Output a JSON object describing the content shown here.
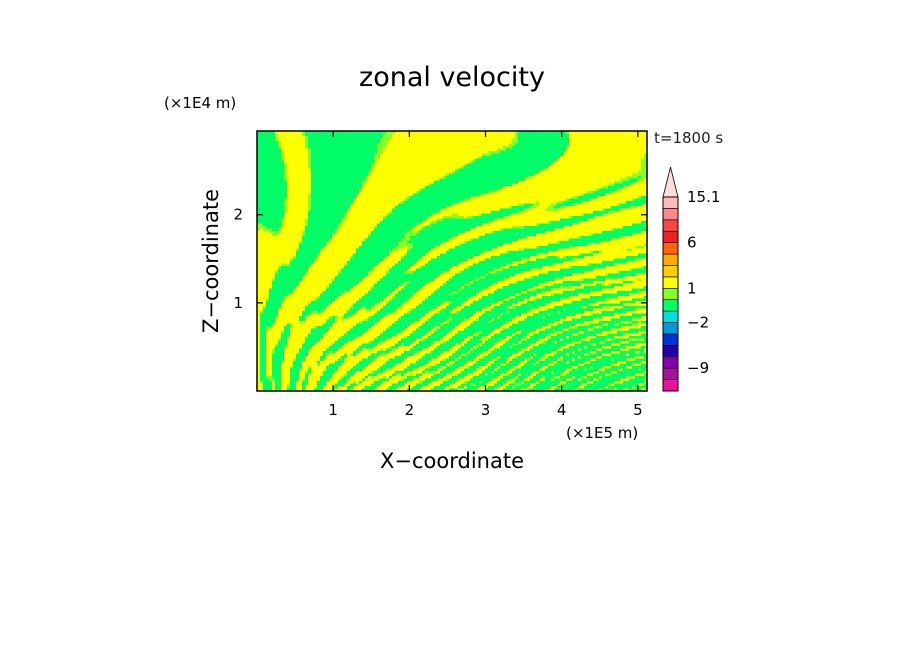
{
  "chart_data": {
    "type": "heatmap",
    "title": "zonal velocity",
    "xlabel": "X−coordinate",
    "ylabel": "Z−coordinate",
    "x_unit": "(×1E5 m)",
    "y_unit": "(×1E4 m)",
    "time_label": "t=1800 s",
    "xlim": [
      0,
      5.12
    ],
    "ylim": [
      0,
      2.95
    ],
    "x_ticks": [
      {
        "value": 1,
        "label": "1"
      },
      {
        "value": 2,
        "label": "2"
      },
      {
        "value": 3,
        "label": "3"
      },
      {
        "value": 4,
        "label": "4"
      },
      {
        "value": 5,
        "label": "5"
      }
    ],
    "y_ticks": [
      {
        "value": 1,
        "label": "1"
      },
      {
        "value": 2,
        "label": "2"
      }
    ],
    "field_colors": {
      "positive_band": "#ffff00",
      "negative_band": "#00ff66",
      "interface_band": "#88ff22"
    },
    "colorbar": {
      "levels": [
        -15,
        -12,
        -9,
        -6,
        -4,
        -3,
        -2,
        -1,
        0,
        1,
        2,
        3,
        4,
        6,
        8,
        10,
        12.5,
        15.1
      ],
      "colors": [
        "#ee1199",
        "#aa1199",
        "#8800aa",
        "#2200aa",
        "#0033dd",
        "#0099dd",
        "#00dddd",
        "#00ff66",
        "#88ff22",
        "#ffff00",
        "#ffcc00",
        "#ffaa00",
        "#ff6600",
        "#ee2222",
        "#ff4444",
        "#ff8888",
        "#ffbbbb"
      ],
      "labels": [
        {
          "value": -9,
          "label": "−9"
        },
        {
          "value": -2,
          "label": "−2"
        },
        {
          "value": 1,
          "label": "1"
        },
        {
          "value": 6,
          "label": "6"
        },
        {
          "value": 15.1,
          "label": "15.1"
        }
      ],
      "extend": "max"
    }
  }
}
